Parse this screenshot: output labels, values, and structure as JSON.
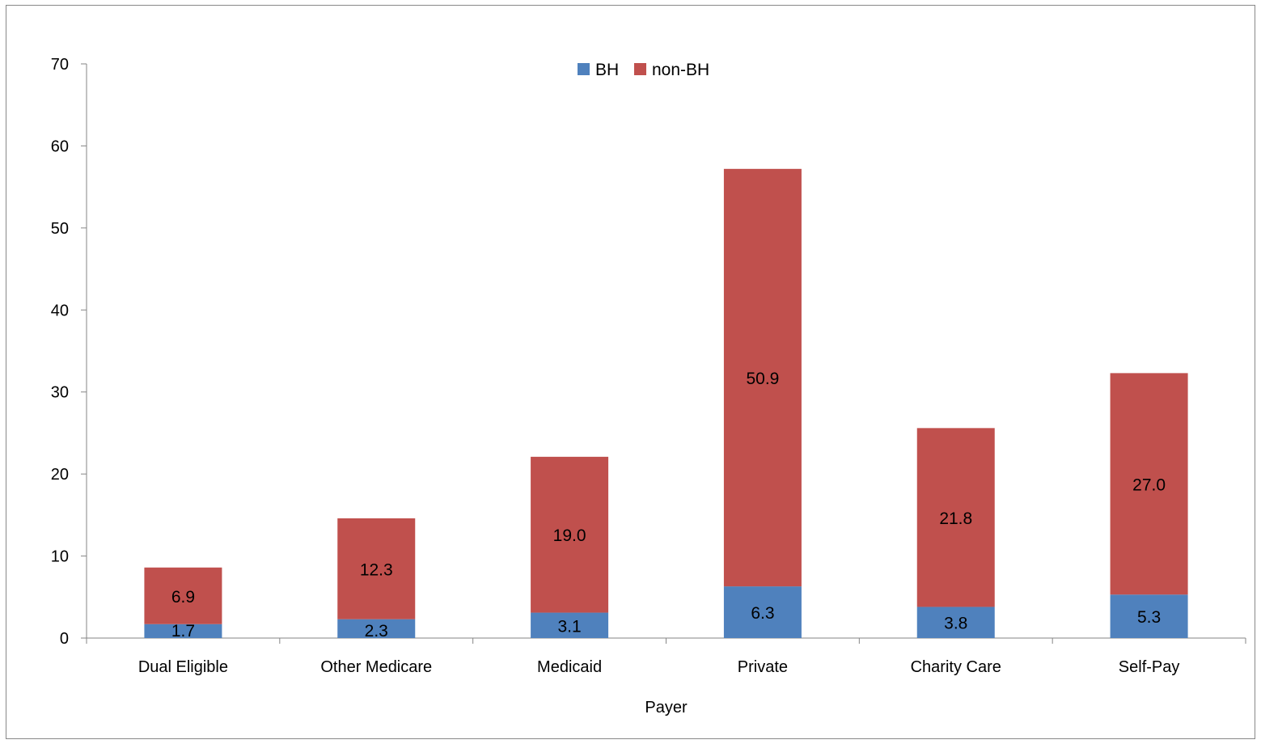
{
  "chart_data": {
    "type": "bar",
    "stacked": true,
    "categories": [
      "Dual Eligible",
      "Other Medicare",
      "Medicaid",
      "Private",
      "Charity Care",
      "Self-Pay"
    ],
    "series": [
      {
        "name": "BH",
        "values": [
          1.7,
          2.3,
          3.1,
          6.3,
          3.8,
          5.3
        ],
        "labels": [
          "1.7",
          "2.3",
          "3.1",
          "6.3",
          "3.8",
          "5.3"
        ],
        "color": "#4f81bd"
      },
      {
        "name": "non-BH",
        "values": [
          6.9,
          12.3,
          19.0,
          50.9,
          21.8,
          27.0
        ],
        "labels": [
          "6.9",
          "12.3",
          "19.0",
          "50.9",
          "21.8",
          "27.0"
        ],
        "color": "#c0504d"
      }
    ],
    "xlabel": "Payer",
    "ylabel": "",
    "ylim": [
      0,
      70
    ],
    "yticks": [
      "0",
      "10",
      "20",
      "30",
      "40",
      "50",
      "60",
      "70"
    ],
    "legend_position": "top-center",
    "grid": false
  }
}
